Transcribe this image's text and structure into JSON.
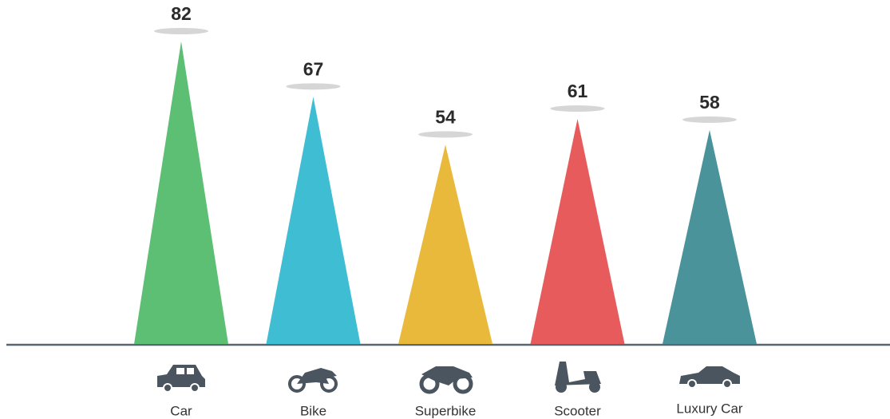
{
  "chart_data": {
    "type": "triangle-bar",
    "categories": [
      "Car",
      "Bike",
      "Superbike",
      "Scooter",
      "Luxury Car"
    ],
    "values": [
      82,
      67,
      54,
      61,
      58
    ],
    "colors": [
      "#5dbf73",
      "#3ebdd3",
      "#e9b93b",
      "#e85b5c",
      "#4b939b"
    ]
  }
}
